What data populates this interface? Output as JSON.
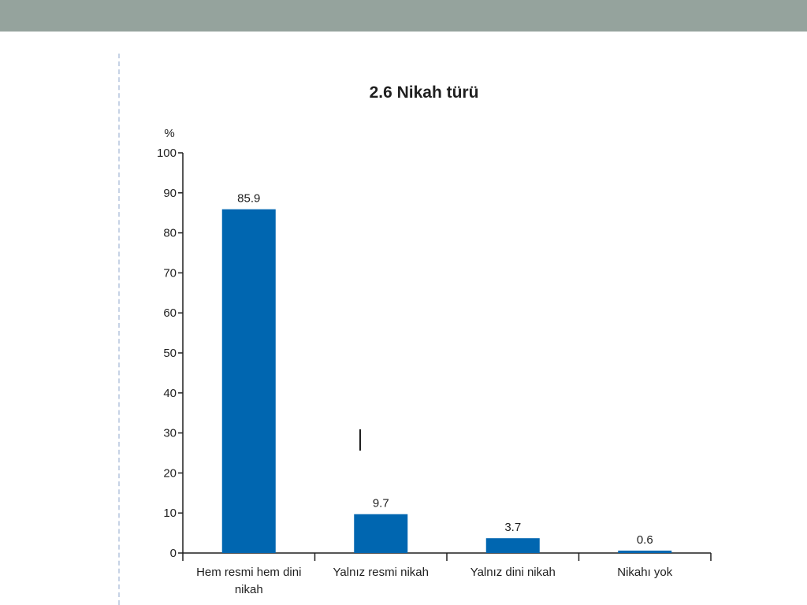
{
  "colors": {
    "header_bar": "#95a39d",
    "bar_fill": "#0066b0",
    "axis": "#1f1f1f"
  },
  "chart_data": {
    "type": "bar",
    "title": "2.6 Nikah türü",
    "ylabel": "%",
    "xlabel": "",
    "ylim": [
      0,
      100
    ],
    "yticks": [
      "0",
      "10",
      "20",
      "30",
      "40",
      "50",
      "60",
      "70",
      "80",
      "90",
      "100"
    ],
    "categories": [
      [
        "Hem resmi hem dini",
        "nikah"
      ],
      [
        "Yalnız resmi nikah"
      ],
      [
        "Yalnız dini nikah"
      ],
      [
        "Nikahı yok"
      ]
    ],
    "values": [
      85.9,
      9.7,
      3.7,
      0.6
    ],
    "value_labels": [
      "85.9",
      "9.7",
      "3.7",
      "0.6"
    ],
    "grid": false,
    "legend": "none"
  }
}
